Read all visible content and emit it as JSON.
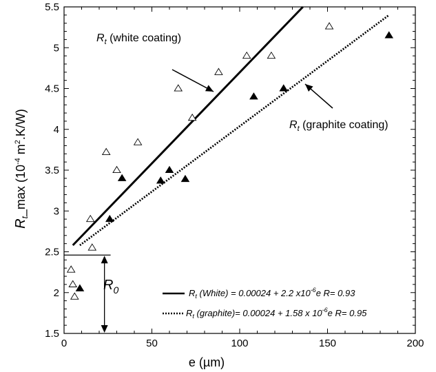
{
  "chart_data": {
    "type": "scatter",
    "xlabel": "e (µm)",
    "ylabel": {
      "main": "R",
      "sub": "t",
      "rest": "_max (10",
      "exp": "-4",
      "rest2": " m",
      "exp2": "2",
      "rest3": ".K/W)"
    },
    "xlim": [
      0,
      200
    ],
    "ylim": [
      1.5,
      5.5
    ],
    "xticks": [
      "0",
      "50",
      "100",
      "150",
      "200"
    ],
    "yticks": [
      "1.5",
      "2",
      "2.5",
      "3",
      "3.5",
      "4",
      "4.5",
      "5",
      "5.5"
    ],
    "grid": false,
    "series": [
      {
        "marker": "open-triangle",
        "x": [
          4,
          5,
          6,
          16,
          15,
          24,
          30,
          42,
          65,
          73,
          88,
          104,
          118,
          151
        ],
        "y": [
          2.28,
          2.1,
          1.95,
          2.55,
          2.9,
          3.72,
          3.5,
          3.84,
          4.5,
          4.14,
          4.7,
          4.9,
          4.9,
          5.26
        ]
      },
      {
        "marker": "filled-triangle",
        "x": [
          9,
          26,
          33,
          55,
          60,
          69,
          108,
          125,
          185
        ],
        "y": [
          2.05,
          2.9,
          3.4,
          3.37,
          3.5,
          3.39,
          4.4,
          4.5,
          5.15
        ]
      }
    ],
    "lines": [
      {
        "style": "solid",
        "x": [
          5,
          136
        ],
        "y": [
          2.58,
          5.5
        ]
      },
      {
        "style": "dotted",
        "x": [
          9,
          185
        ],
        "y": [
          2.58,
          5.4
        ]
      }
    ],
    "r0_level": 2.46,
    "annotations": {
      "white": {
        "main": "R",
        "sub": "t",
        "rest": " (white coating)"
      },
      "graphite": {
        "main": "R",
        "sub": "t",
        "rest": " (graphite coating)"
      },
      "r0": {
        "main": "R",
        "sub": "0"
      }
    },
    "legend": {
      "placement": "bottom-right",
      "entries": [
        {
          "style": "solid",
          "main": "R",
          "sub": "t",
          "rest": " (White) = 0.00024 + 2.2 x10",
          "exp": "-6",
          "tail": "e R= 0.93"
        },
        {
          "style": "dotted",
          "main": "R",
          "sub": "t",
          "rest": " (graphite)= 0.00024 + 1.58 x 10",
          "exp": "-6",
          "tail": "e R= 0.95"
        }
      ]
    }
  }
}
